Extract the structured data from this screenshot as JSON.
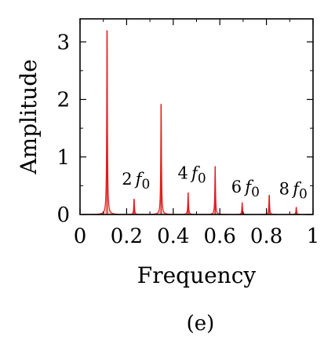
{
  "chart_data": {
    "type": "line",
    "xlabel": "Frequency",
    "ylabel": "Amplitude",
    "caption": "(e)",
    "xlim": [
      0,
      1
    ],
    "ylim": [
      0,
      3.4
    ],
    "xticks": [
      0,
      0.2,
      0.4,
      0.6,
      0.8,
      1
    ],
    "xtick_labels": [
      "0",
      "0.2",
      "0.4",
      "0.6",
      "0.8",
      "1"
    ],
    "yticks": [
      0,
      1,
      2,
      3
    ],
    "ytick_labels": [
      "0",
      "1",
      "2",
      "3"
    ],
    "grid": false,
    "color": "#e31a1c",
    "peaks": [
      {
        "x": 0.116,
        "y": 3.2
      },
      {
        "x": 0.232,
        "y": 0.27
      },
      {
        "x": 0.348,
        "y": 1.92
      },
      {
        "x": 0.464,
        "y": 0.38
      },
      {
        "x": 0.58,
        "y": 0.84
      },
      {
        "x": 0.696,
        "y": 0.2
      },
      {
        "x": 0.812,
        "y": 0.34
      },
      {
        "x": 0.928,
        "y": 0.12
      }
    ],
    "annotations": [
      {
        "coef": "2",
        "sym": "f",
        "sub": "0",
        "x": 0.24,
        "y": 0.52
      },
      {
        "coef": "4",
        "sym": "f",
        "sub": "0",
        "x": 0.48,
        "y": 0.62
      },
      {
        "coef": "6",
        "sym": "f",
        "sub": "0",
        "x": 0.71,
        "y": 0.38
      },
      {
        "coef": "8",
        "sym": "f",
        "sub": "0",
        "x": 0.915,
        "y": 0.35
      }
    ]
  }
}
